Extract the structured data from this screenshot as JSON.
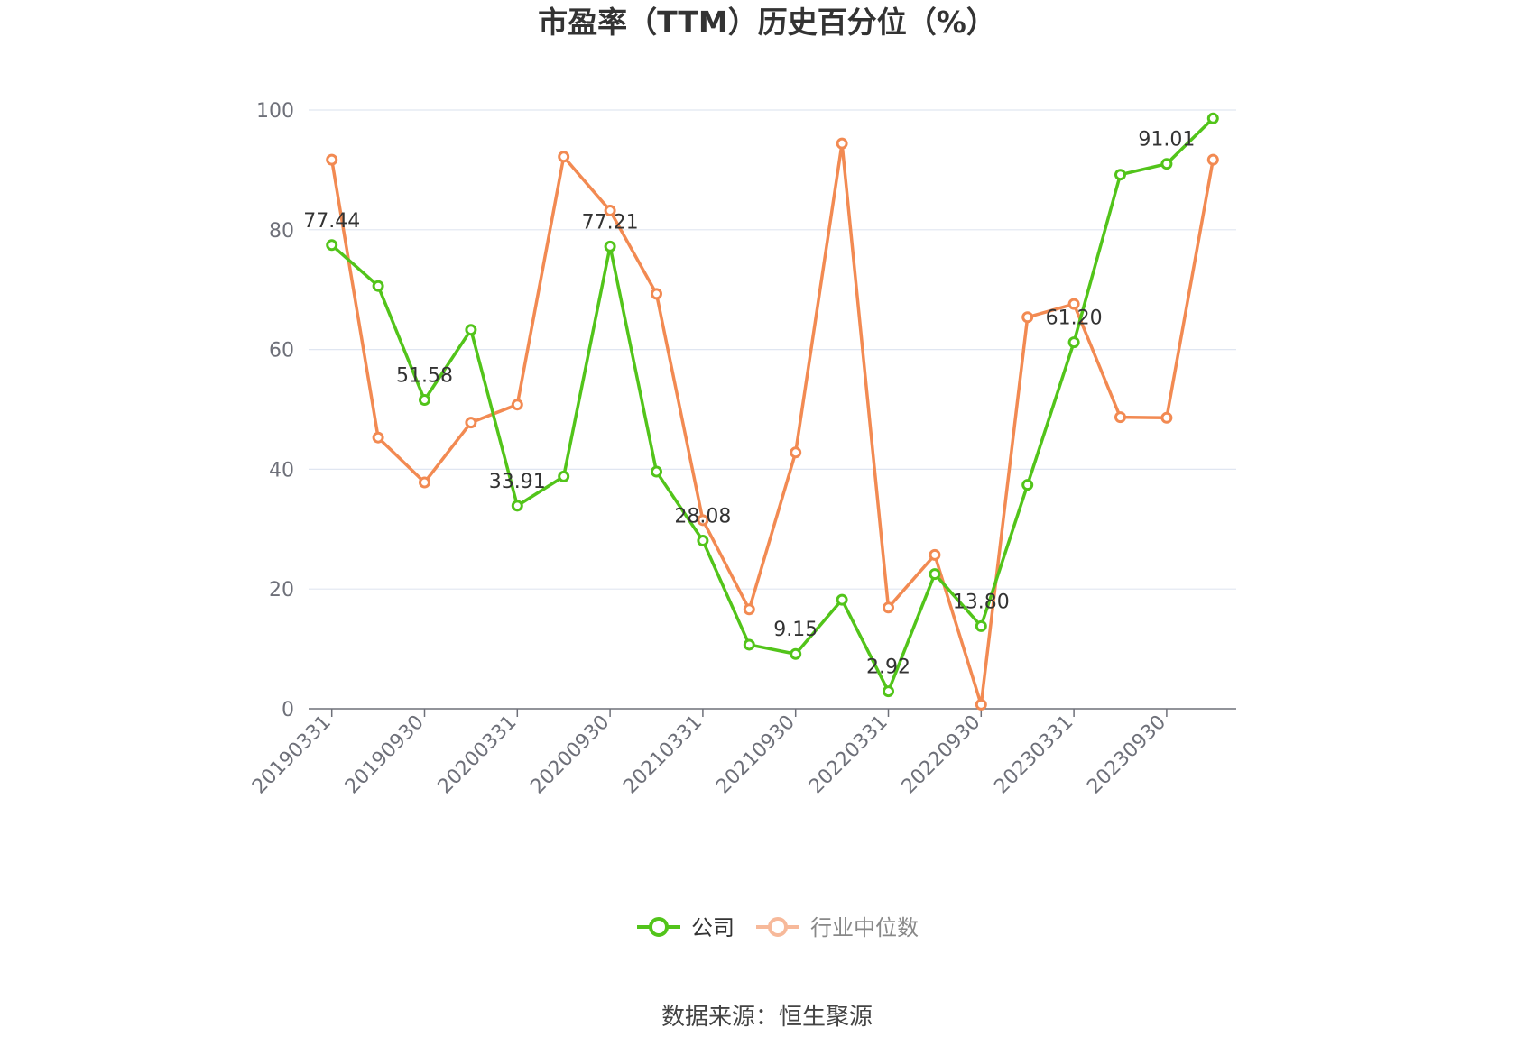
{
  "chart_data": {
    "type": "line",
    "title": "市盈率（TTM）历史百分位（%）",
    "x": [
      "20190331",
      "20190630",
      "20190930",
      "20191231",
      "20200331",
      "20200630",
      "20200930",
      "20201231",
      "20210331",
      "20210630",
      "20210930",
      "20211231",
      "20220331",
      "20220630",
      "20220930",
      "20221231",
      "20230331",
      "20230630",
      "20230930",
      "20231231"
    ],
    "x_tick_labels": [
      "20190331",
      "20190930",
      "20200331",
      "20200930",
      "20210331",
      "20210930",
      "20220331",
      "20220930",
      "20230331",
      "20230930"
    ],
    "ylim": [
      0,
      100
    ],
    "y_ticks": [
      0,
      20,
      40,
      60,
      80,
      100
    ],
    "grid": true,
    "legend_position": "bottom-center",
    "series": [
      {
        "name": "公司",
        "color": "#52c41a",
        "values": [
          77.44,
          70.6,
          51.58,
          63.3,
          33.91,
          38.8,
          77.21,
          39.6,
          28.08,
          10.7,
          9.15,
          18.2,
          2.92,
          22.5,
          13.8,
          37.4,
          61.2,
          89.2,
          91.01,
          98.6
        ],
        "labels": {
          "0": "77.44",
          "2": "51.58",
          "4": "33.91",
          "6": "77.21",
          "8": "28.08",
          "10": "9.15",
          "12": "2.92",
          "14": "13.80",
          "16": "61.20",
          "18": "91.01"
        }
      },
      {
        "name": "行业中位数",
        "color": "#f28a52",
        "values": [
          91.7,
          45.3,
          37.8,
          47.8,
          50.8,
          92.2,
          83.2,
          69.3,
          31.5,
          16.6,
          42.8,
          94.4,
          16.9,
          25.7,
          0.7,
          65.4,
          67.6,
          48.7,
          48.6,
          91.7
        ]
      }
    ]
  },
  "footer": {
    "source": "数据来源：恒生聚源"
  },
  "legend_inactive_color": "#f7b99a"
}
